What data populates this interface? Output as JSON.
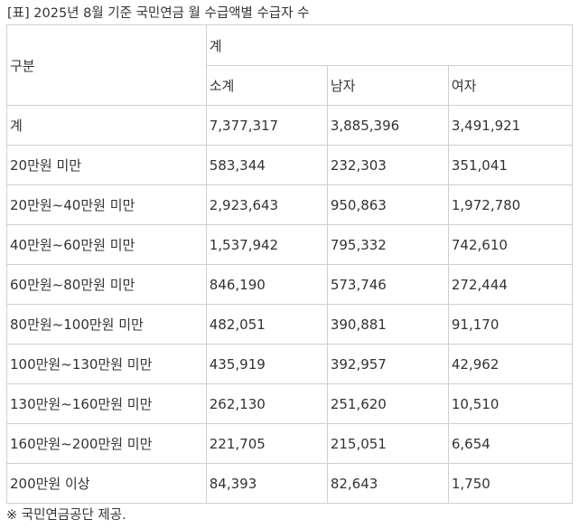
{
  "caption": "[표] 2025년 8월 기준 국민연금 월 수급액별 수급자 수",
  "header": {
    "group_label": "구분",
    "top_label": "계",
    "sub_labels": [
      "소계",
      "남자",
      "여자"
    ]
  },
  "rows": [
    {
      "label": "계",
      "total": "7,377,317",
      "male": "3,885,396",
      "female": "3,491,921"
    },
    {
      "label": "20만원 미만",
      "total": "583,344",
      "male": "232,303",
      "female": "351,041"
    },
    {
      "label": "20만원~40만원 미만",
      "total": "2,923,643",
      "male": "950,863",
      "female": "1,972,780"
    },
    {
      "label": "40만원~60만원 미만",
      "total": "1,537,942",
      "male": "795,332",
      "female": "742,610"
    },
    {
      "label": "60만원~80만원 미만",
      "total": "846,190",
      "male": "573,746",
      "female": "272,444"
    },
    {
      "label": "80만원~100만원 미만",
      "total": "482,051",
      "male": "390,881",
      "female": "91,170"
    },
    {
      "label": "100만원~130만원 미만",
      "total": "435,919",
      "male": "392,957",
      "female": "42,962"
    },
    {
      "label": "130만원~160만원 미만",
      "total": "262,130",
      "male": "251,620",
      "female": "10,510"
    },
    {
      "label": "160만원~200만원 미만",
      "total": "221,705",
      "male": "215,051",
      "female": "6,654"
    },
    {
      "label": "200만원 이상",
      "total": "84,393",
      "male": "82,643",
      "female": "1,750"
    }
  ],
  "footnote": "※ 국민연금공단 제공."
}
